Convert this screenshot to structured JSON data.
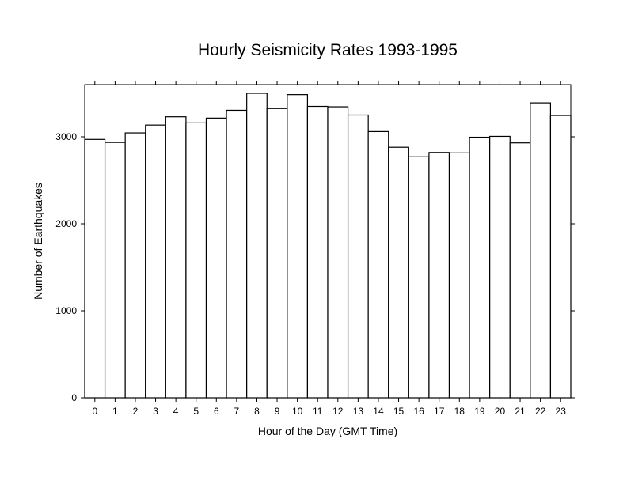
{
  "chart_data": {
    "type": "bar",
    "title": "Hourly Seismicity Rates 1993-1995",
    "xlabel": "Hour of the Day (GMT Time)",
    "ylabel": "Number of Earthquakes",
    "categories": [
      "0",
      "1",
      "2",
      "3",
      "4",
      "5",
      "6",
      "7",
      "8",
      "9",
      "10",
      "11",
      "12",
      "13",
      "14",
      "15",
      "16",
      "17",
      "18",
      "19",
      "20",
      "21",
      "22",
      "23"
    ],
    "values": [
      2970,
      2935,
      3045,
      3135,
      3230,
      3160,
      3215,
      3305,
      3500,
      3325,
      3485,
      3350,
      3345,
      3250,
      3060,
      2880,
      2770,
      2820,
      2815,
      2995,
      3005,
      2930,
      3390,
      3245
    ],
    "ylim": [
      0,
      3600
    ],
    "yticks": [
      0,
      1000,
      2000,
      3000
    ],
    "ytick_labels": [
      "0",
      "1000",
      "2000",
      "3000"
    ],
    "grid": false,
    "legend": "none",
    "colors": {
      "bar_fill": "#ffffff",
      "bar_stroke": "#000000",
      "axis": "#000000"
    }
  }
}
